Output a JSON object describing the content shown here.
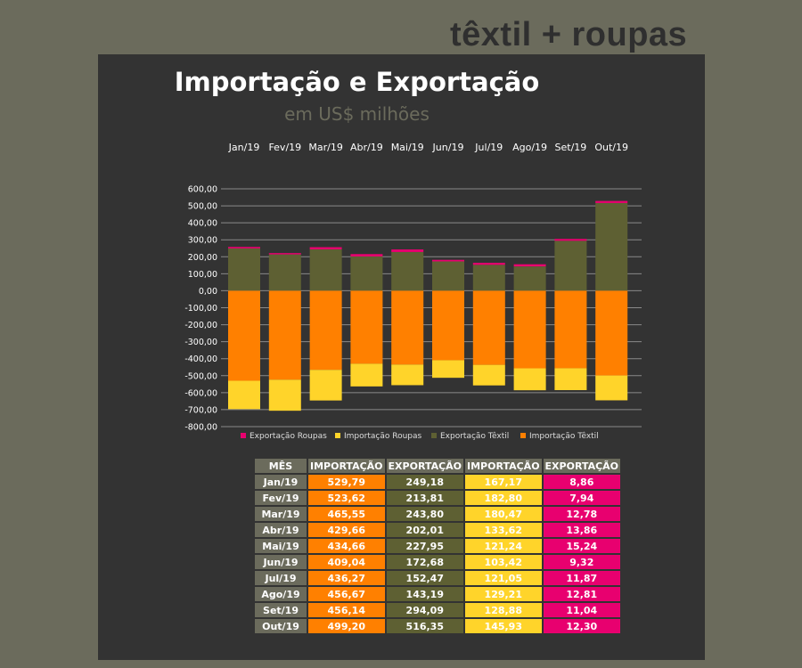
{
  "brand": "têxtil + roupas",
  "chart_data": {
    "type": "bar",
    "stacked": true,
    "title": "Importação e Exportação",
    "subtitle": "em US$ milhões",
    "categories": [
      "Jan/19",
      "Fev/19",
      "Mar/19",
      "Abr/19",
      "Mai/19",
      "Jun/19",
      "Jul/19",
      "Ago/19",
      "Set/19",
      "Out/19"
    ],
    "y_ticks": [
      "600,00",
      "500,00",
      "400,00",
      "300,00",
      "200,00",
      "100,00",
      "0,00",
      "-100,00",
      "-200,00",
      "-300,00",
      "-400,00",
      "-500,00",
      "-600,00",
      "-700,00",
      "-800,00"
    ],
    "ylim": [
      -800,
      600
    ],
    "grid": true,
    "legend_position": "bottom",
    "series": [
      {
        "name": "Exportação Roupas",
        "color": "#e8006f",
        "values": [
          8.86,
          7.94,
          12.78,
          13.86,
          15.24,
          9.32,
          11.87,
          12.81,
          11.04,
          12.3
        ]
      },
      {
        "name": "Importação Roupas",
        "color": "#ffd42a",
        "values": [
          -167.17,
          -182.8,
          -180.47,
          -133.62,
          -121.24,
          -103.42,
          -121.05,
          -129.21,
          -128.88,
          -145.93
        ]
      },
      {
        "name": "Exportação Têxtil",
        "color": "#5e6033",
        "values": [
          249.18,
          213.81,
          243.8,
          202.01,
          227.95,
          172.68,
          152.47,
          143.19,
          294.09,
          516.35
        ]
      },
      {
        "name": "Importação Têxtil",
        "color": "#ff8000",
        "values": [
          -529.79,
          -523.62,
          -465.55,
          -429.66,
          -434.66,
          -409.04,
          -436.27,
          -456.67,
          -456.14,
          -499.2
        ]
      }
    ]
  },
  "table": {
    "headers": [
      "MÊS",
      "IMPORTAÇÃO",
      "EXPORTAÇÃO",
      "IMPORTAÇÃO",
      "EXPORTAÇÃO"
    ],
    "rows": [
      [
        "Jan/19",
        "529,79",
        "249,18",
        "167,17",
        "8,86"
      ],
      [
        "Fev/19",
        "523,62",
        "213,81",
        "182,80",
        "7,94"
      ],
      [
        "Mar/19",
        "465,55",
        "243,80",
        "180,47",
        "12,78"
      ],
      [
        "Abr/19",
        "429,66",
        "202,01",
        "133,62",
        "13,86"
      ],
      [
        "Mai/19",
        "434,66",
        "227,95",
        "121,24",
        "15,24"
      ],
      [
        "Jun/19",
        "409,04",
        "172,68",
        "103,42",
        "9,32"
      ],
      [
        "Jul/19",
        "436,27",
        "152,47",
        "121,05",
        "11,87"
      ],
      [
        "Ago/19",
        "456,67",
        "143,19",
        "129,21",
        "12,81"
      ],
      [
        "Set/19",
        "456,14",
        "294,09",
        "128,88",
        "11,04"
      ],
      [
        "Out/19",
        "499,20",
        "516,35",
        "145,93",
        "12,30"
      ]
    ]
  }
}
